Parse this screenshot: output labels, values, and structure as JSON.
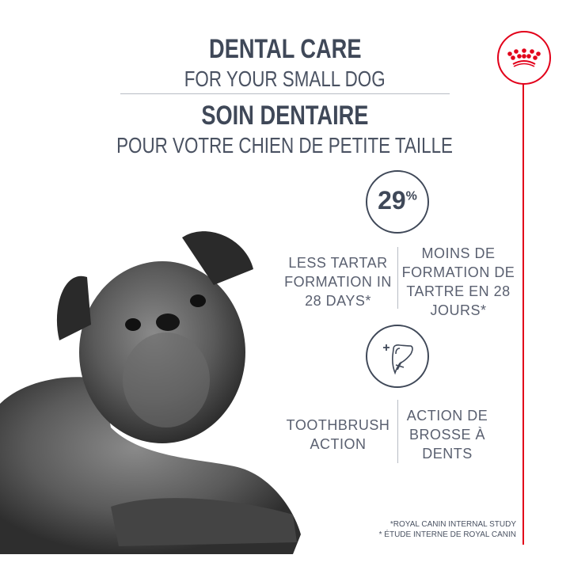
{
  "header": {
    "title_en": "DENTAL CARE",
    "subtitle_en": "FOR YOUR SMALL DOG",
    "title_fr": "SOIN DENTAIRE",
    "subtitle_fr": "POUR VOTRE CHIEN DE PETITE TAILLE"
  },
  "brand": {
    "logo": "royal-canin-crown",
    "logo_text": "ROYAL CANIN",
    "color": "#e2001a"
  },
  "benefits": [
    {
      "stat": "29",
      "unit": "%",
      "text_en": [
        "LESS TARTAR",
        "FORMATION IN",
        "28 DAYS*"
      ],
      "text_fr": [
        "MOINS DE",
        "FORMATION DE",
        "TARTRE EN 28",
        "JOURS*"
      ]
    },
    {
      "icon": "tooth-plus-icon",
      "text_en": [
        "TOOTHBRUSH",
        "ACTION"
      ],
      "text_fr": [
        "ACTION DE",
        "BROSSE À",
        "DENTS"
      ]
    }
  ],
  "footnote": {
    "en": "*ROYAL CANIN INTERNAL STUDY",
    "fr": "* ÉTUDE INTERNE DE ROYAL CANIN"
  },
  "colors": {
    "text": "#3f4858",
    "accent": "#e2001a"
  }
}
